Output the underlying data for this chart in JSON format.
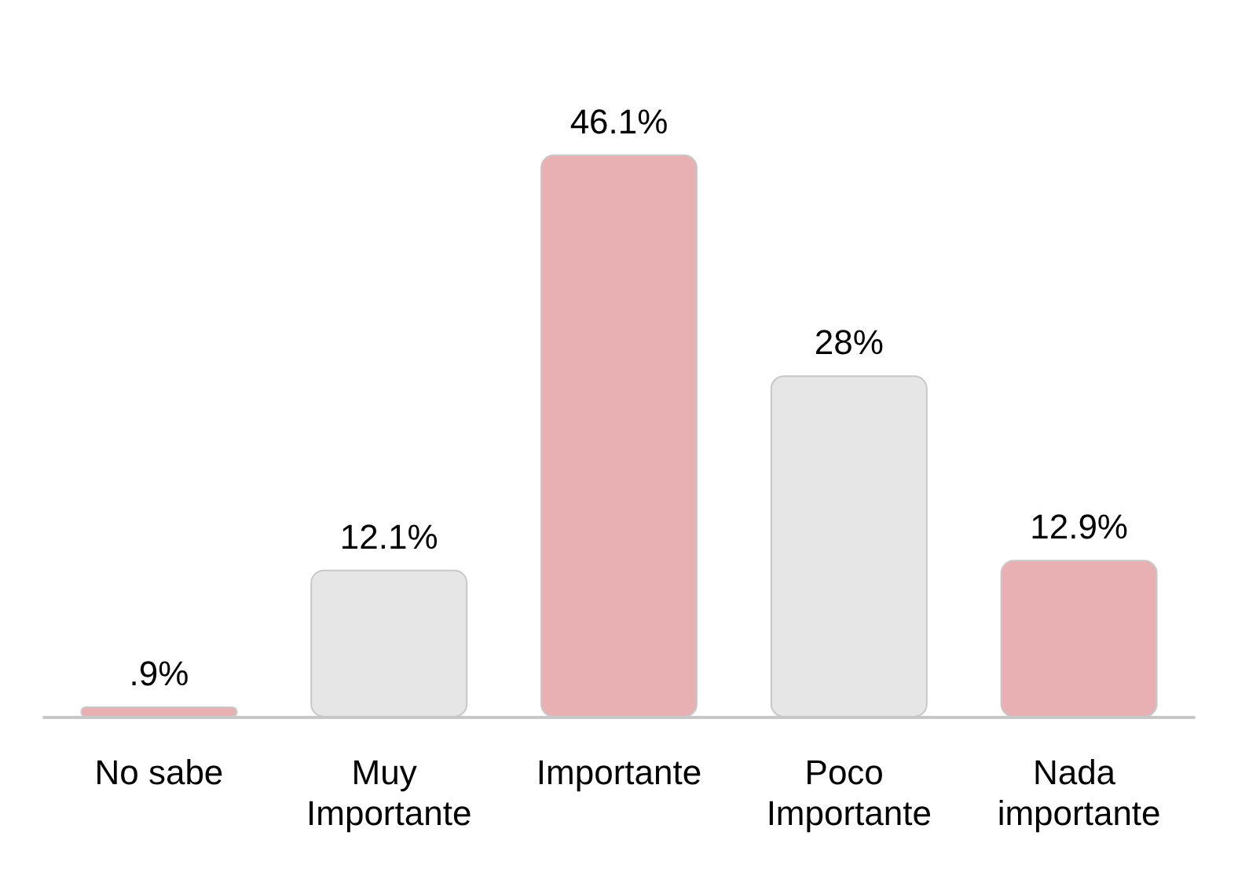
{
  "chart_data": {
    "type": "bar",
    "categories": [
      "No sabe",
      "Muy Importante",
      "Importante",
      "Poco Importante",
      "Nada importante"
    ],
    "values": [
      0.9,
      12.1,
      46.1,
      28,
      12.9
    ],
    "colors": [
      "#e8b0b2",
      "#e6e6e6",
      "#e8b0b2",
      "#e6e6e6",
      "#e8b0b2"
    ],
    "value_labels": [
      ".9%",
      "12.1%",
      "46.1%",
      "28%",
      "12.9%"
    ]
  }
}
